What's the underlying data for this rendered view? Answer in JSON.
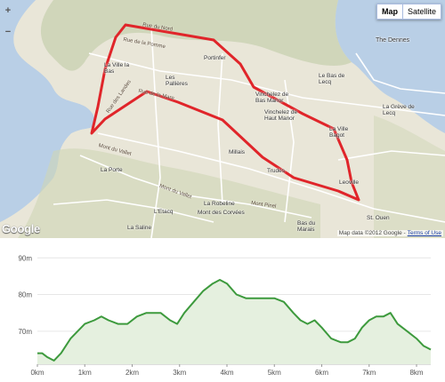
{
  "map": {
    "controls": {
      "map_label": "Map",
      "satellite_label": "Satellite",
      "zoom_in": "+",
      "zoom_out": "−"
    },
    "logo": "Google",
    "attribution": {
      "prefix": "Map data ©2012 Google -",
      "terms": "Terms of Use"
    },
    "places": [
      {
        "label": "The Dennes",
        "kind": "big"
      },
      {
        "label": "Portinfer",
        "kind": "small"
      },
      {
        "label": "La Ville la Bas",
        "kind": "small"
      },
      {
        "label": "Les Pallières",
        "kind": "small"
      },
      {
        "label": "Le Bas de Lecq",
        "kind": "small"
      },
      {
        "label": "La Grève de Lecq",
        "kind": "small"
      },
      {
        "label": "Vinchelez de Bas Manor",
        "kind": "small"
      },
      {
        "label": "Vinchelez de Haut Manor",
        "kind": "small"
      },
      {
        "label": "La Ville Bagot",
        "kind": "small"
      },
      {
        "label": "Millais",
        "kind": "small"
      },
      {
        "label": "Trudes",
        "kind": "small"
      },
      {
        "label": "Leoville",
        "kind": "small"
      },
      {
        "label": "La Porte",
        "kind": "small"
      },
      {
        "label": "La Robeline",
        "kind": "small"
      },
      {
        "label": "L'Etacq",
        "kind": "small"
      },
      {
        "label": "Mont des Corvées",
        "kind": "small"
      },
      {
        "label": "La Saline",
        "kind": "small"
      },
      {
        "label": "Bas du Marais",
        "kind": "small"
      },
      {
        "label": "St. Ouen",
        "kind": "small"
      }
    ],
    "roads": [
      {
        "label": "Rue de la Pomme"
      },
      {
        "label": "Rue du Nord"
      },
      {
        "label": "Mont du Vallet"
      },
      {
        "label": "Mont du Vallet"
      },
      {
        "label": "Mont Pinel"
      },
      {
        "label": "Rue des Landes"
      },
      {
        "label": "Rue de la Mare"
      }
    ],
    "colors": {
      "sea": "#b9cfe6",
      "land": "#e9e6d8",
      "hill": "#c5cfae",
      "route": "#e0252a",
      "road": "#ffffff"
    }
  },
  "elevation": {
    "chart_data": {
      "type": "area",
      "xlabel": "",
      "ylabel": "",
      "x_unit": "km",
      "y_unit": "m",
      "xlim": [
        0,
        8.3
      ],
      "ylim": [
        61,
        92
      ],
      "x_ticks": [
        "0km",
        "1km",
        "2km",
        "3km",
        "4km",
        "5km",
        "6km",
        "7km",
        "8km"
      ],
      "y_ticks": [
        "70m",
        "80m",
        "90m"
      ],
      "grid": "horizontal",
      "series": [
        {
          "x": [
            0,
            0.1,
            0.2,
            0.35,
            0.5,
            0.7,
            0.85,
            1.0,
            1.2,
            1.35,
            1.5,
            1.7,
            1.9,
            2.1,
            2.3,
            2.45,
            2.6,
            2.8,
            2.95,
            3.1,
            3.3,
            3.5,
            3.7,
            3.85,
            4.0,
            4.2,
            4.4,
            4.6,
            4.8,
            5.0,
            5.2,
            5.4,
            5.55,
            5.7,
            5.85,
            6.0,
            6.2,
            6.4,
            6.55,
            6.7,
            6.85,
            7.0,
            7.15,
            7.3,
            7.45,
            7.6,
            7.8,
            8.0,
            8.15,
            8.3
          ],
          "y": [
            64,
            64,
            63,
            62,
            64,
            68,
            70,
            72,
            73,
            74,
            73,
            72,
            72,
            74,
            75,
            75,
            75,
            73,
            72,
            75,
            78,
            81,
            83,
            84,
            83,
            80,
            79,
            79,
            79,
            79,
            78,
            75,
            73,
            72,
            73,
            71,
            68,
            67,
            67,
            68,
            71,
            73,
            74,
            74,
            75,
            72,
            70,
            68,
            66,
            65
          ]
        }
      ],
      "colors": {
        "line": "#3d9a3d",
        "fill": "#e5f0df",
        "grid": "#e6e6e6"
      }
    }
  }
}
